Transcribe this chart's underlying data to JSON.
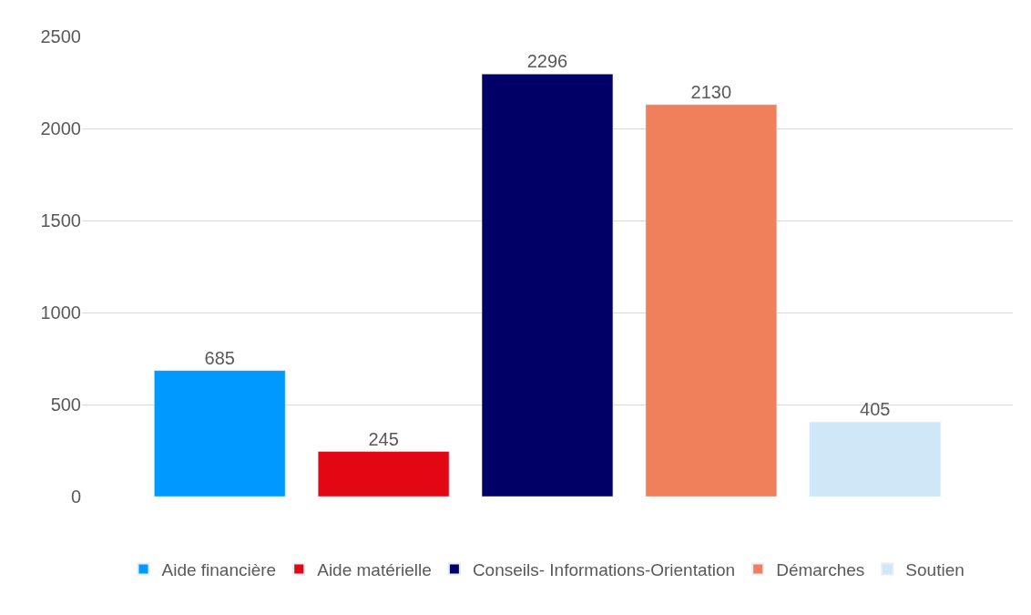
{
  "chart_data": {
    "type": "bar",
    "categories": [
      null
    ],
    "series": [
      {
        "name": "Aide financière",
        "color": "#0099ff",
        "values": [
          685
        ]
      },
      {
        "name": "Aide matérielle",
        "color": "#e30613",
        "values": [
          245
        ]
      },
      {
        "name": "Conseils- Informations-Orientation",
        "color": "#000066",
        "values": [
          2296
        ]
      },
      {
        "name": "Démarches",
        "color": "#f07f5c",
        "values": [
          2130
        ]
      },
      {
        "name": "Soutien",
        "color": "#cfe8f7",
        "values": [
          405
        ]
      }
    ],
    "ylim": [
      0,
      2500
    ],
    "yticks": [
      0,
      500,
      1000,
      1500,
      2000,
      2500
    ],
    "grid": "y",
    "legend": "bottom",
    "data_labels": true
  }
}
